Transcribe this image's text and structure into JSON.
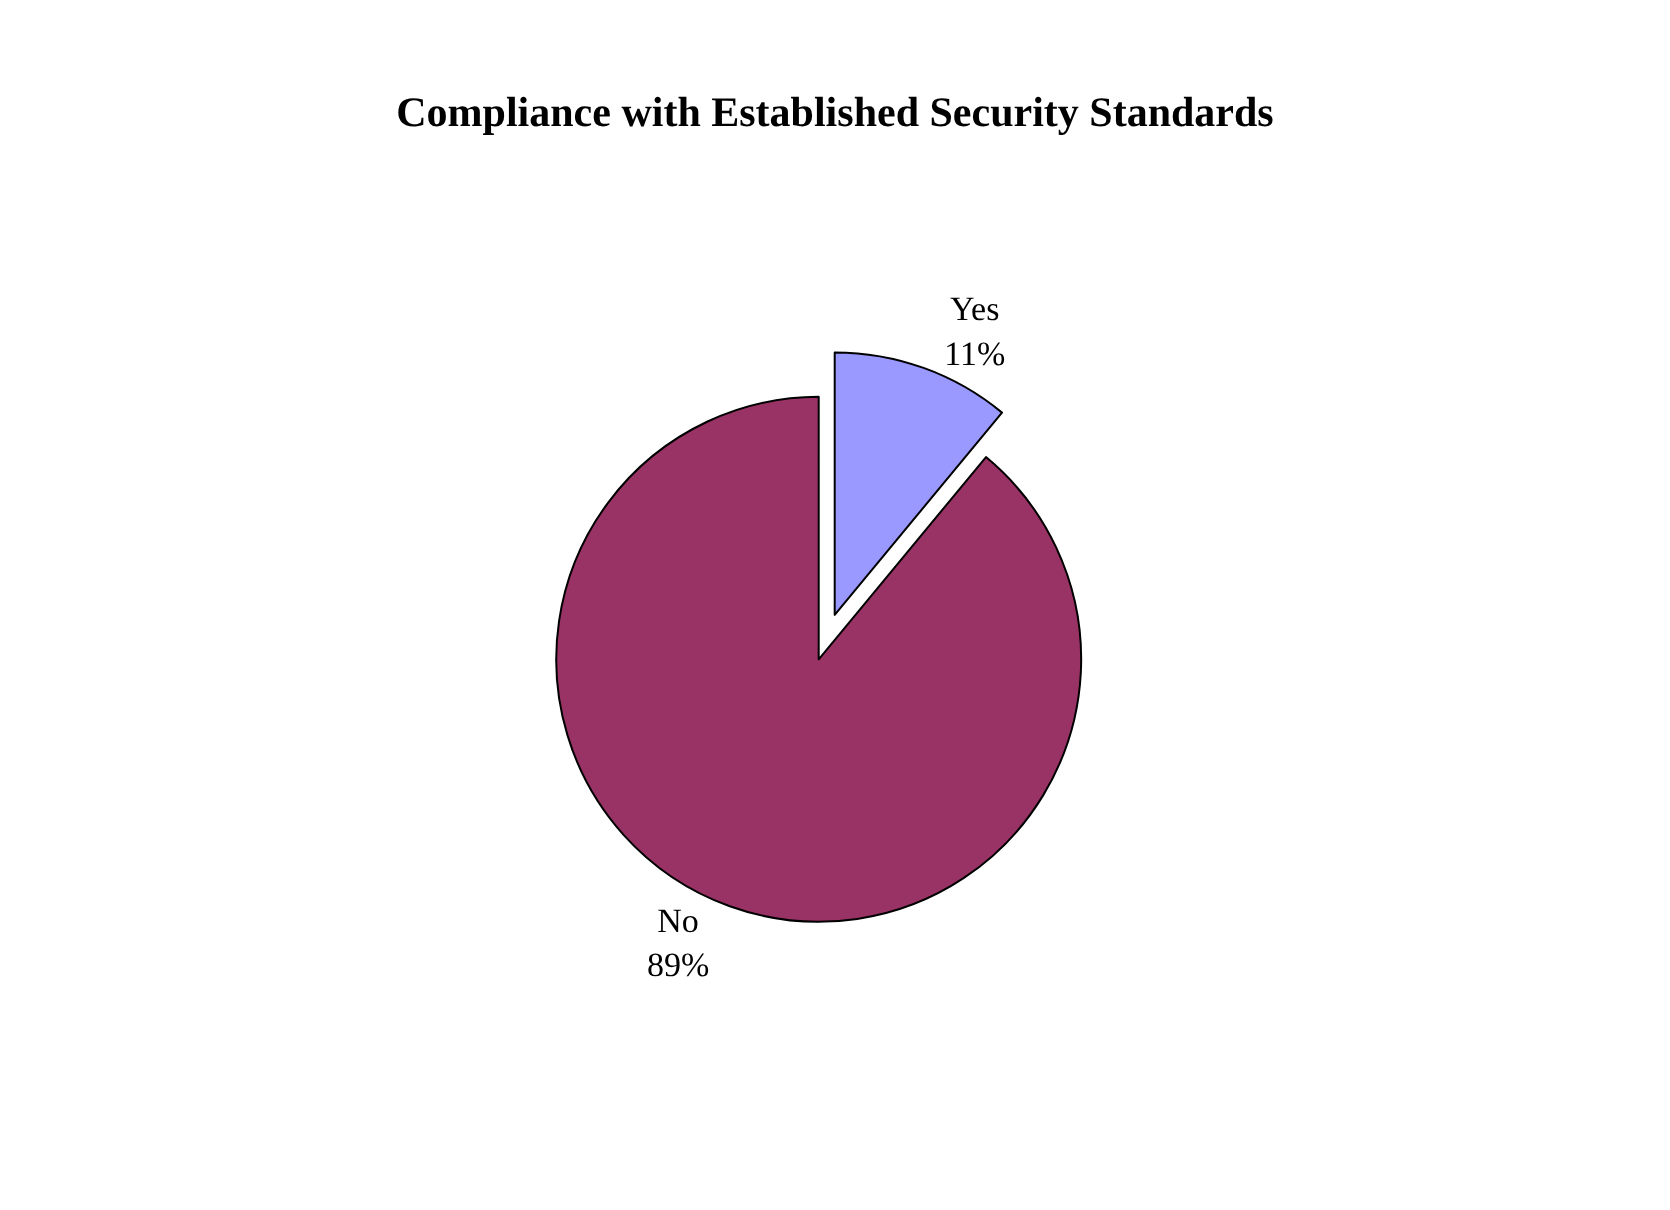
{
  "chart_data": {
    "type": "pie",
    "title": "Compliance with Established Security Standards",
    "categories": [
      "Yes",
      "No"
    ],
    "values": [
      11,
      89
    ],
    "colors": [
      "#9999ff",
      "#993366"
    ],
    "value_labels": [
      "11%",
      "89%"
    ],
    "legend": false
  }
}
